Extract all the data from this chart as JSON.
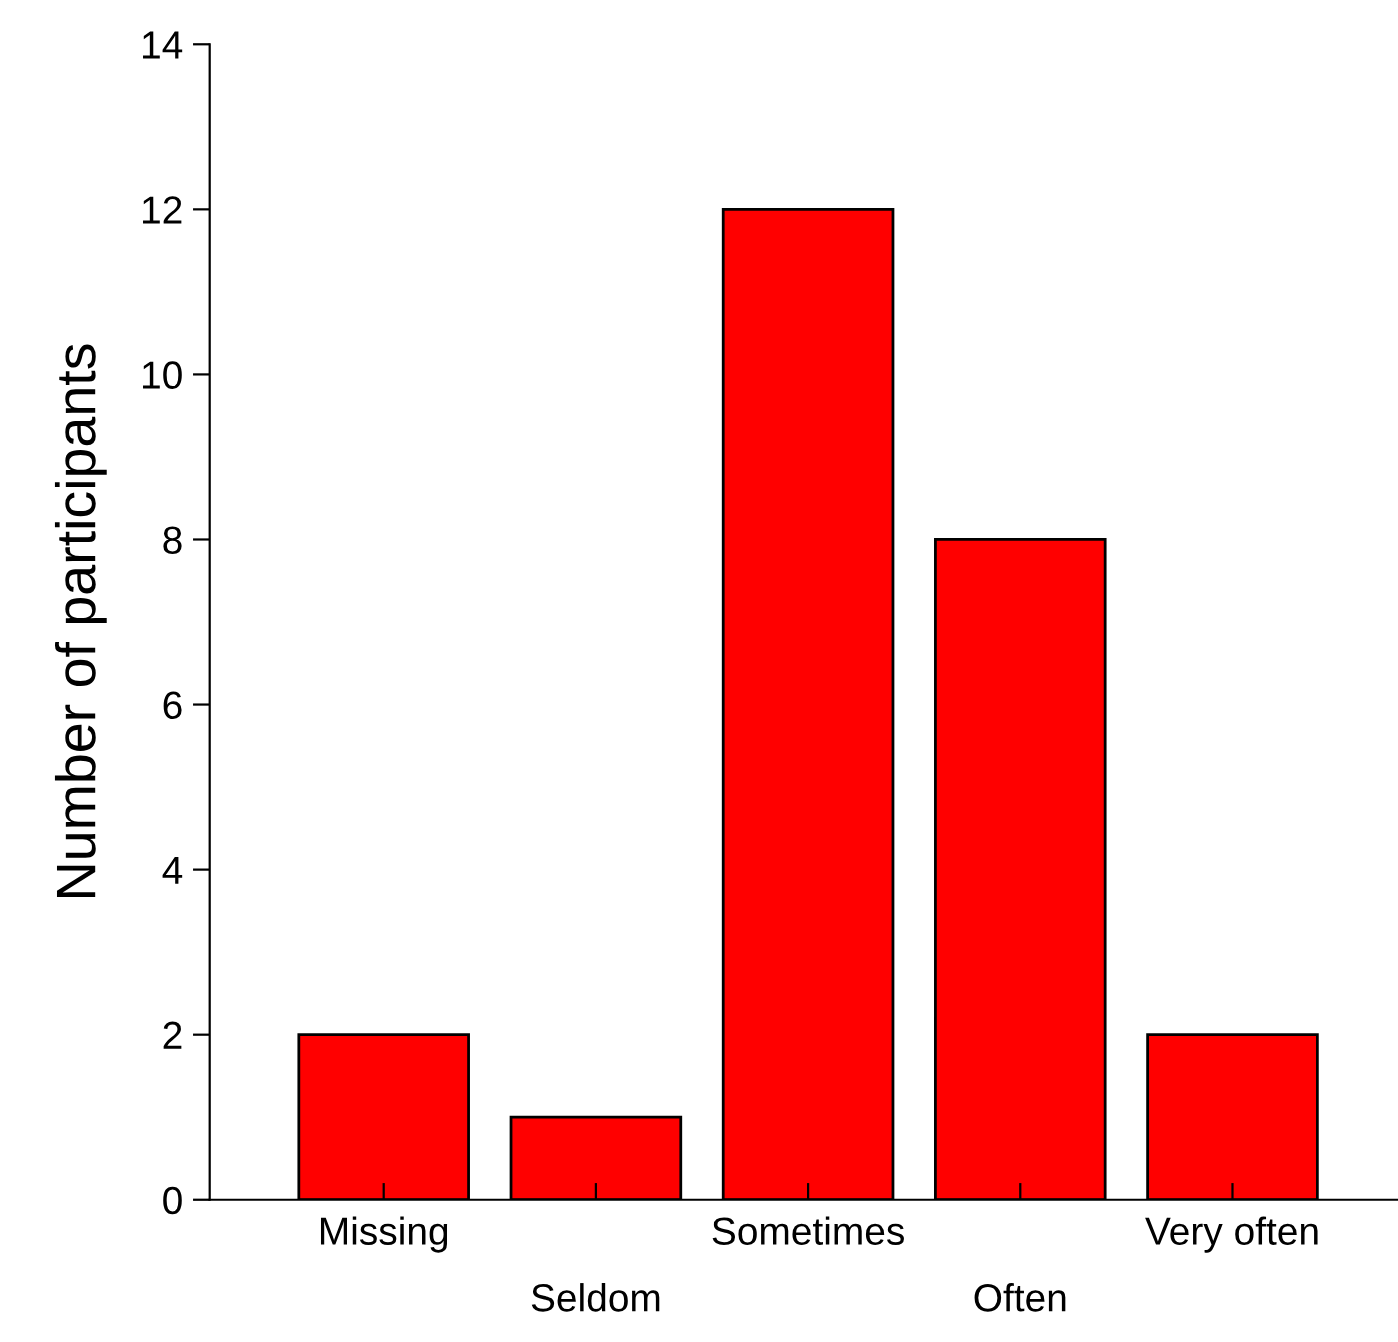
{
  "chart_data": {
    "type": "bar",
    "ylabel": "Number of participants",
    "categories": [
      "Missing",
      "Seldom",
      "Sometimes",
      "Often",
      "Very often"
    ],
    "values": [
      2,
      1,
      12,
      8,
      2
    ],
    "color": "#ff0000",
    "ylim": [
      0,
      14
    ],
    "yticks": [
      0,
      2,
      4,
      6,
      8,
      10,
      12,
      14
    ],
    "grid": false,
    "legend": false
  }
}
